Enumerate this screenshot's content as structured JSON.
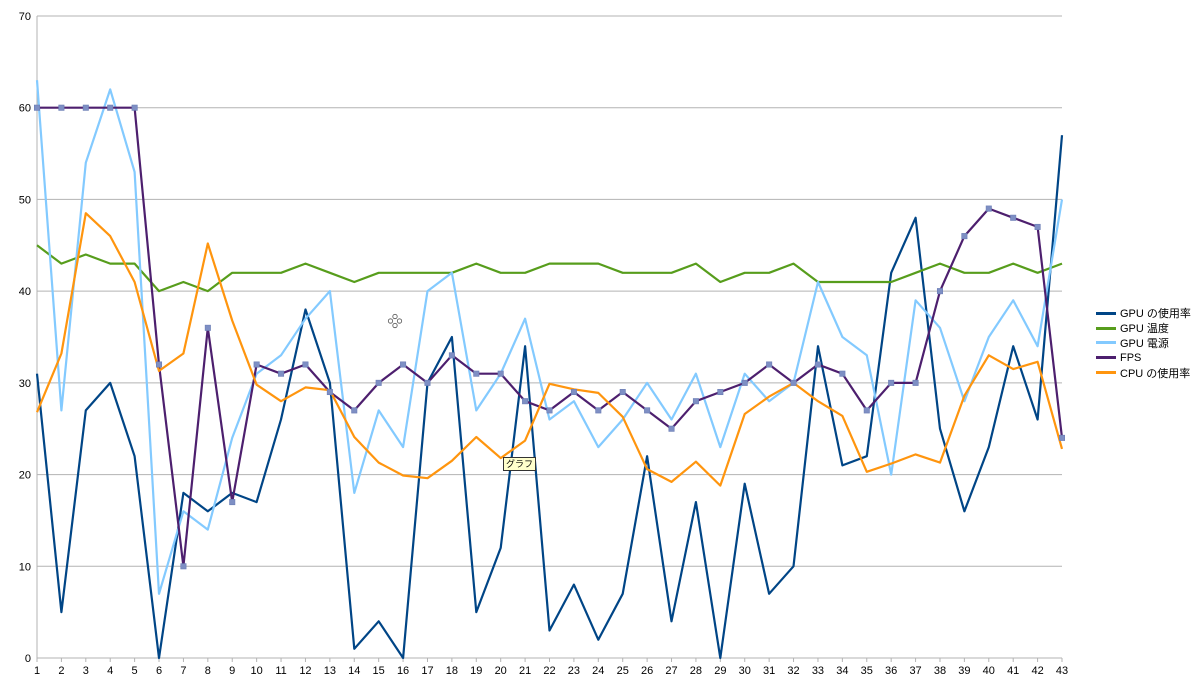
{
  "chart_data": {
    "type": "line",
    "title": "",
    "xlabel": "",
    "ylabel": "",
    "ylim": [
      0,
      70
    ],
    "yticks": [
      0,
      10,
      20,
      30,
      40,
      50,
      60,
      70
    ],
    "grid": true,
    "legend_position": "right",
    "categories": [
      1,
      2,
      3,
      4,
      5,
      6,
      7,
      8,
      9,
      10,
      11,
      12,
      13,
      14,
      15,
      16,
      17,
      18,
      19,
      20,
      21,
      22,
      23,
      24,
      25,
      26,
      27,
      28,
      29,
      30,
      31,
      32,
      33,
      34,
      35,
      36,
      37,
      38,
      39,
      40,
      41,
      42,
      43
    ],
    "series": [
      {
        "name": "GPU  の使用率",
        "color": "#004586",
        "markers": false,
        "values": [
          31,
          5,
          27,
          30,
          22,
          0,
          18,
          16,
          18,
          17,
          26,
          38,
          30,
          1,
          4,
          0,
          30,
          35,
          5,
          12,
          34,
          3,
          8,
          2,
          7,
          22,
          4,
          17,
          0,
          19,
          7,
          10,
          34,
          21,
          22,
          42,
          48,
          25,
          16,
          23,
          34,
          26,
          57
        ]
      },
      {
        "name": "GPU  温度",
        "color": "#579d1c",
        "markers": false,
        "values": [
          45,
          43,
          44,
          43,
          43,
          40,
          41,
          40,
          42,
          42,
          42,
          43,
          42,
          41,
          42,
          42,
          42,
          42,
          43,
          42,
          42,
          43,
          43,
          43,
          42,
          42,
          42,
          43,
          41,
          42,
          42,
          43,
          41,
          41,
          41,
          41,
          42,
          43,
          42,
          42,
          43,
          42,
          43
        ]
      },
      {
        "name": "GPU  電源",
        "color": "#83caff",
        "markers": false,
        "values": [
          63,
          27,
          54,
          62,
          53,
          7,
          16,
          14,
          24,
          31,
          33,
          37,
          40,
          18,
          27,
          23,
          40,
          42,
          27,
          31,
          37,
          26,
          28,
          23,
          26,
          30,
          26,
          31,
          23,
          31,
          28,
          30,
          41,
          35,
          33,
          20,
          39,
          36,
          28,
          35,
          39,
          34,
          50
        ]
      },
      {
        "name": "FPS",
        "color": "#4d1f6e",
        "markers": true,
        "values": [
          60,
          60,
          60,
          60,
          60,
          32,
          10,
          36,
          17,
          32,
          31,
          32,
          29,
          27,
          30,
          32,
          30,
          33,
          31,
          31,
          28,
          27,
          29,
          27,
          29,
          27,
          25,
          28,
          29,
          30,
          32,
          30,
          32,
          31,
          27,
          30,
          30,
          40,
          46,
          49,
          48,
          47,
          24
        ]
      },
      {
        "name": "CPU  の使用率",
        "color": "#ff950e",
        "markers": false,
        "values": [
          26.8,
          33.2,
          48.5,
          46,
          41,
          31.3,
          33.2,
          45.2,
          36.8,
          29.8,
          28,
          29.5,
          29.2,
          24.1,
          21.3,
          19.9,
          19.6,
          21.5,
          24.1,
          21.8,
          23.7,
          29.9,
          29.3,
          28.9,
          26.3,
          20.6,
          19.2,
          21.4,
          18.8,
          26.6,
          28.5,
          30,
          28,
          26.4,
          20.3,
          21.2,
          22.2,
          21.3,
          28.6,
          33,
          31.5,
          32.3,
          22.8
        ]
      }
    ]
  },
  "tooltip_text": "グラフ",
  "icons": {
    "move": "move-cursor-icon"
  }
}
